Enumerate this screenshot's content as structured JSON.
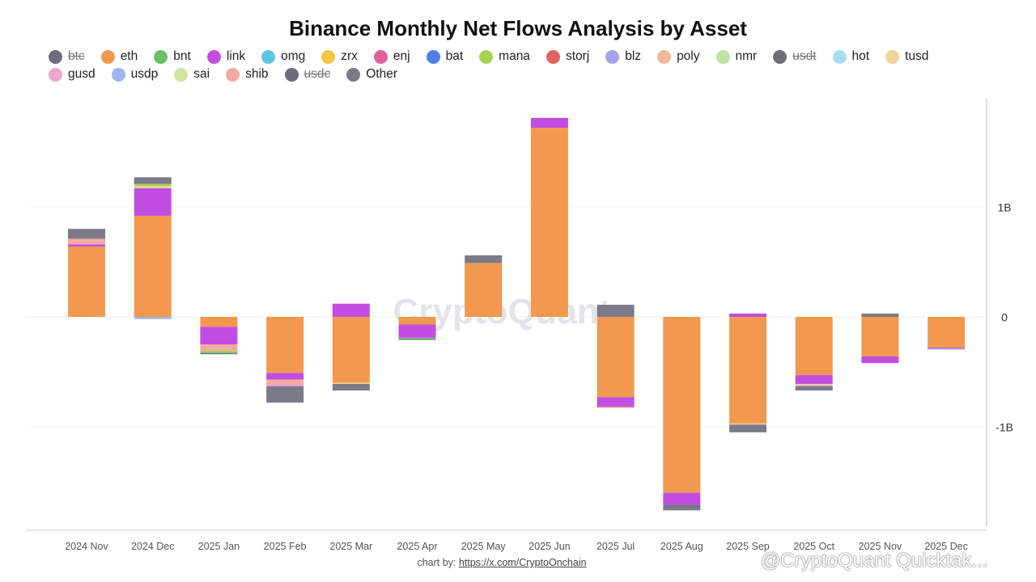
{
  "chart_data": {
    "type": "bar",
    "stacked": true,
    "title": "Binance Monthly Net Flows Analysis by Asset",
    "y_ticks": [
      {
        "value": 1000000000,
        "label": "1B"
      },
      {
        "value": 0,
        "label": "0"
      },
      {
        "value": -1000000000,
        "label": "-1B"
      }
    ],
    "ylim": [
      -1950000000,
      2000000000
    ],
    "categories": [
      "2024 Nov",
      "2024 Dec",
      "2025 Jan",
      "2025 Feb",
      "2025 Mar",
      "2025 Apr",
      "2025 May",
      "2025 Jun",
      "2025 Jul",
      "2025 Aug",
      "2025 Sep",
      "2025 Oct",
      "2025 Nov",
      "2025 Dec"
    ],
    "legend": [
      {
        "name": "btc",
        "color": "#6e6e7a",
        "hidden": true
      },
      {
        "name": "eth",
        "color": "#f2994f",
        "hidden": false
      },
      {
        "name": "bnt",
        "color": "#6cc065",
        "hidden": false
      },
      {
        "name": "link",
        "color": "#c14ee0",
        "hidden": false
      },
      {
        "name": "omg",
        "color": "#5fc6e2",
        "hidden": false
      },
      {
        "name": "zrx",
        "color": "#f2c744",
        "hidden": false
      },
      {
        "name": "enj",
        "color": "#e0609c",
        "hidden": false
      },
      {
        "name": "bat",
        "color": "#4f7fe6",
        "hidden": false
      },
      {
        "name": "mana",
        "color": "#a6d34e",
        "hidden": false
      },
      {
        "name": "storj",
        "color": "#e06464",
        "hidden": false
      },
      {
        "name": "blz",
        "color": "#a3a3ee",
        "hidden": false
      },
      {
        "name": "poly",
        "color": "#f5b896",
        "hidden": false
      },
      {
        "name": "nmr",
        "color": "#bfe3a4",
        "hidden": false
      },
      {
        "name": "usdt",
        "color": "#6e6e7a",
        "hidden": true
      },
      {
        "name": "hot",
        "color": "#a8dff0",
        "hidden": false
      },
      {
        "name": "tusd",
        "color": "#efd597",
        "hidden": false
      },
      {
        "name": "gusd",
        "color": "#f0a4cc",
        "hidden": false
      },
      {
        "name": "usdp",
        "color": "#9fb4f2",
        "hidden": false
      },
      {
        "name": "sai",
        "color": "#d3e3a4",
        "hidden": false
      },
      {
        "name": "shib",
        "color": "#f3aaa0",
        "hidden": false
      },
      {
        "name": "usdc",
        "color": "#6e6e7a",
        "hidden": true
      },
      {
        "name": "Other",
        "color": "#7a7a88",
        "hidden": false
      }
    ],
    "series": [
      {
        "name": "eth",
        "values": [
          640000000,
          920000000,
          -90000000,
          -510000000,
          -600000000,
          -70000000,
          490000000,
          1720000000,
          -730000000,
          -1600000000,
          -970000000,
          -530000000,
          -360000000,
          -280000000
        ]
      },
      {
        "name": "link",
        "values": [
          20000000,
          250000000,
          -160000000,
          -60000000,
          120000000,
          -120000000,
          0,
          90000000,
          -90000000,
          -110000000,
          30000000,
          -80000000,
          -60000000,
          -10000000
        ]
      },
      {
        "name": "shib",
        "values": [
          50000000,
          0,
          -60000000,
          -40000000,
          0,
          0,
          0,
          0,
          0,
          0,
          0,
          0,
          0,
          0
        ]
      },
      {
        "name": "tusd",
        "values": [
          0,
          20000000,
          0,
          0,
          -10000000,
          0,
          0,
          0,
          -10000000,
          0,
          -10000000,
          -10000000,
          0,
          0
        ]
      },
      {
        "name": "mana",
        "values": [
          0,
          20000000,
          -10000000,
          0,
          0,
          0,
          0,
          0,
          0,
          0,
          0,
          0,
          0,
          0
        ]
      },
      {
        "name": "gusd",
        "values": [
          0,
          0,
          0,
          -20000000,
          0,
          0,
          0,
          0,
          0,
          0,
          0,
          -10000000,
          0,
          0
        ]
      },
      {
        "name": "usdp",
        "values": [
          0,
          -20000000,
          0,
          0,
          0,
          0,
          0,
          0,
          0,
          0,
          0,
          0,
          0,
          0
        ]
      },
      {
        "name": "hot",
        "values": [
          0,
          0,
          0,
          0,
          0,
          0,
          0,
          0,
          0,
          0,
          0,
          0,
          0,
          -10000000
        ]
      },
      {
        "name": "bnt",
        "values": [
          0,
          0,
          -10000000,
          0,
          0,
          -10000000,
          0,
          0,
          0,
          0,
          0,
          0,
          0,
          0
        ]
      },
      {
        "name": "Other",
        "values": [
          90000000,
          60000000,
          -10000000,
          -150000000,
          -60000000,
          -10000000,
          70000000,
          0,
          110000000,
          -50000000,
          -70000000,
          -40000000,
          30000000,
          0
        ]
      }
    ],
    "watermark": "CryptoQuant",
    "credit_text": "chart by:",
    "credit_link": "https://x.com/CryptoOnchain",
    "brand_overlay": "@CryptoQuant Quicktak..."
  }
}
